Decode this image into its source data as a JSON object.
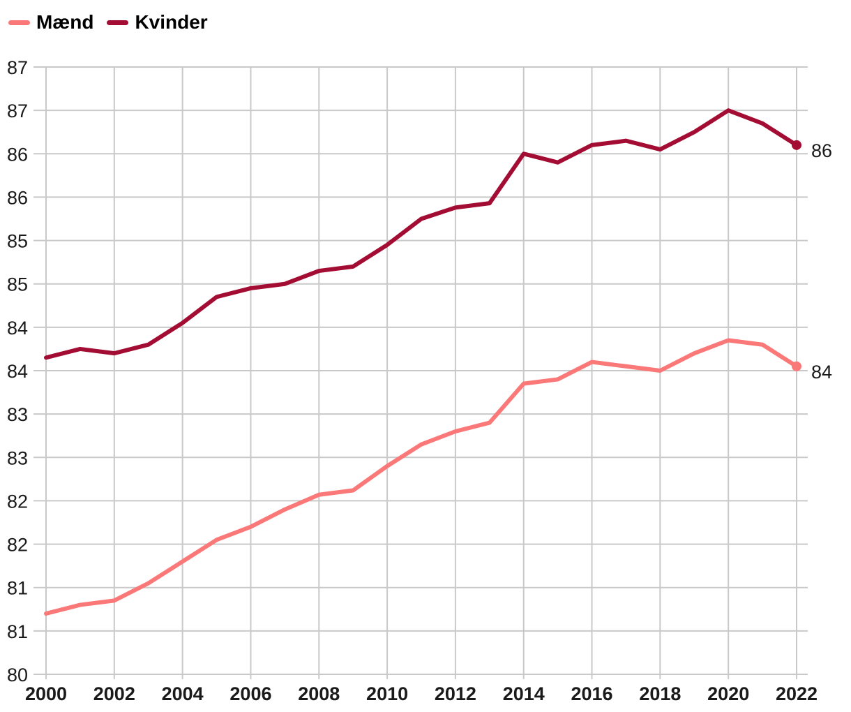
{
  "chart_data": {
    "type": "line",
    "title": "",
    "xlabel": "",
    "ylabel": "",
    "x": [
      2000,
      2001,
      2002,
      2003,
      2004,
      2005,
      2006,
      2007,
      2008,
      2009,
      2010,
      2011,
      2012,
      2013,
      2014,
      2015,
      2016,
      2017,
      2018,
      2019,
      2020,
      2021,
      2022
    ],
    "series": [
      {
        "name": "Mænd",
        "color": "#fa7878",
        "end_label": "84",
        "values": [
          80.7,
          80.8,
          80.85,
          81.05,
          81.3,
          81.55,
          81.7,
          81.9,
          82.07,
          82.12,
          82.4,
          82.65,
          82.8,
          82.9,
          83.35,
          83.4,
          83.6,
          83.55,
          83.5,
          83.7,
          83.85,
          83.8,
          83.55
        ]
      },
      {
        "name": "Kvinder",
        "color": "#a40d33",
        "end_label": "86",
        "values": [
          83.65,
          83.75,
          83.7,
          83.8,
          84.05,
          84.35,
          84.45,
          84.5,
          84.65,
          84.7,
          84.95,
          85.25,
          85.38,
          85.43,
          86.0,
          85.9,
          86.1,
          86.15,
          86.05,
          86.25,
          86.5,
          86.35,
          86.1
        ]
      }
    ],
    "xlim": [
      2000,
      2022
    ],
    "ylim": [
      80,
      87
    ],
    "x_tick_labels": [
      "2000",
      "2002",
      "2004",
      "2006",
      "2008",
      "2010",
      "2012",
      "2014",
      "2016",
      "2018",
      "2020",
      "2022"
    ],
    "y_gridline_values": [
      87,
      86.5,
      86,
      85.5,
      85,
      84.5,
      84,
      83.5,
      83,
      82.5,
      82,
      81.5,
      81,
      80.5,
      80
    ],
    "y_tick_labels": [
      "87",
      "87",
      "86",
      "86",
      "85",
      "85",
      "84",
      "84",
      "83",
      "83",
      "82",
      "82",
      "81",
      "81",
      "80"
    ],
    "grid": true,
    "legend_position": "top-left",
    "colors": {
      "gridline": "#c9c9c9",
      "tick_text": "#1a1a1a",
      "legend_text": "#000000",
      "background": "#ffffff"
    }
  }
}
